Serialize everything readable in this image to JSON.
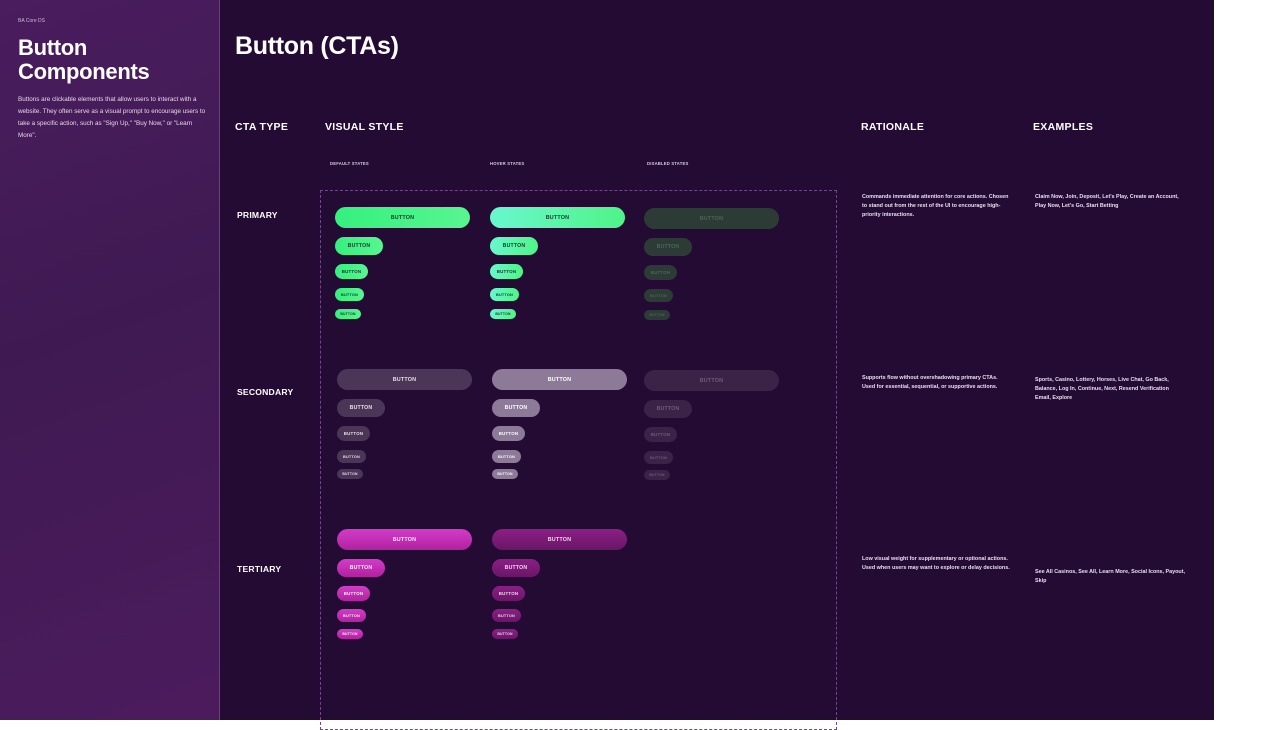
{
  "sidebar": {
    "eyebrow": "BA Core DS",
    "title": "Button Components",
    "description": "Buttons are clickable elements that allow users to interact with a website. They often serve as a visual prompt to encourage users to take a specific action, such as \"Sign Up,\" \"Buy Now,\" or \"Learn More\"."
  },
  "main": {
    "title": "Button (CTAs)",
    "columns": {
      "cta_type": "CTA TYPE",
      "visual_style": "VISUAL STYLE",
      "rationale": "RATIONALE",
      "examples": "EXAMPLES"
    },
    "states": {
      "default": "DEFAULT STATES",
      "hover": "HOVER STATES",
      "disabled": "DISABLED STATES"
    },
    "button_label": "BUTTON",
    "rows": [
      {
        "label": "PRIMARY",
        "rationale": "Commands immediate attention for core actions. Chosen to stand out from the rest of the UI to encourage high-priority interactions.",
        "examples": "Claim Now, Join, Deposit, Let's Play, Create an Account, Play Now, Let's Go, Start Betting"
      },
      {
        "label": "SECONDARY",
        "rationale": "Supports flow without overshadowing primary CTAs. Used for essential, sequential, or supportive actions.",
        "examples": "Sports, Casino, Lottery, Horses, Live Chat, Go Back, Balance, Log In, Continue, Next, Resend Verification Email, Explore"
      },
      {
        "label": "TERTIARY",
        "rationale": "Low visual weight for supplementary or optional actions. Used when users may want to explore or delay decisions.",
        "examples": "See All Casinos, See All, Learn More, Social Icons, Payout, Skip"
      }
    ]
  },
  "colors": {
    "primary_default": "#35f07f",
    "primary_hover": "#69f7cf",
    "primary_disabled": "#2d3b37",
    "secondary_default": "#4b3658",
    "secondary_hover": "#8d7a98",
    "secondary_disabled": "#3a2347",
    "tertiary_default": "#c22eb4",
    "tertiary_hover": "#7a1b76",
    "background": "#230b33",
    "sidebar": "#4a1d5e"
  }
}
